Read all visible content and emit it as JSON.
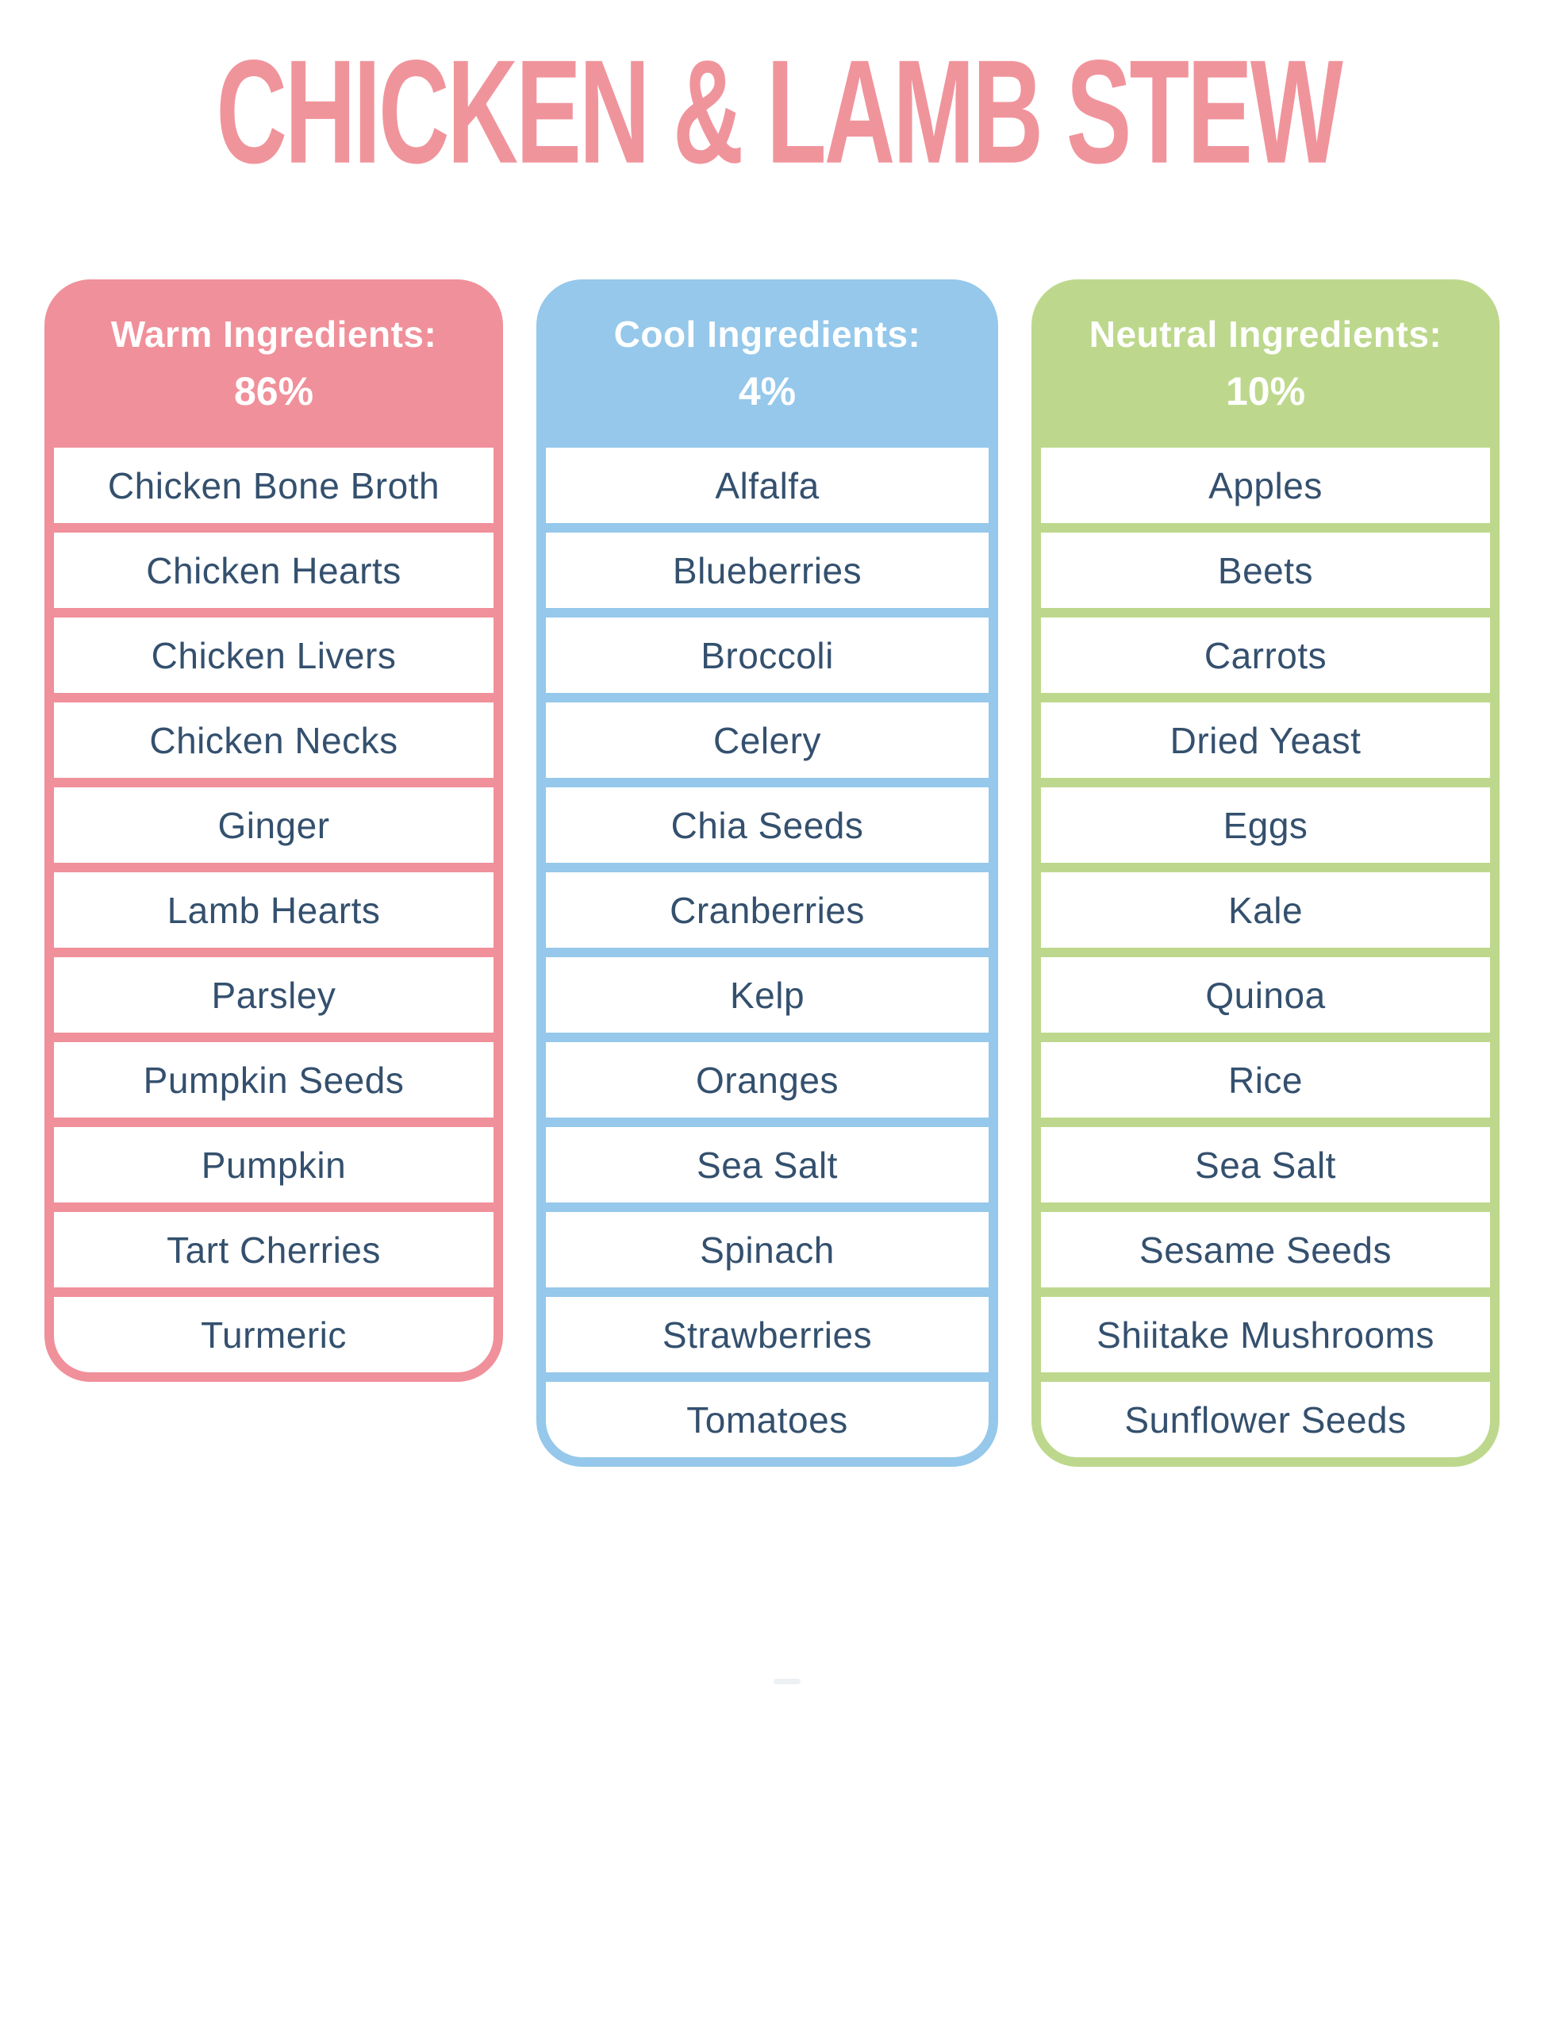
{
  "title": "CHICKEN & LAMB STEW",
  "colors": {
    "title": "#F0949C",
    "text": "#34506E",
    "row_bg": "#FFFFFF",
    "warm": "#F0909A",
    "cool": "#95C8EA",
    "neutral": "#BDD88C"
  },
  "columns": [
    {
      "id": "warm",
      "header": "Warm Ingredients:",
      "percent": "86%",
      "color": "#F0909A",
      "items": [
        "Chicken Bone Broth",
        "Chicken Hearts",
        "Chicken Livers",
        "Chicken Necks",
        "Ginger",
        "Lamb Hearts",
        "Parsley",
        "Pumpkin Seeds",
        "Pumpkin",
        "Tart Cherries",
        "Turmeric"
      ]
    },
    {
      "id": "cool",
      "header": "Cool Ingredients:",
      "percent": "4%",
      "color": "#95C8EA",
      "items": [
        "Alfalfa",
        "Blueberries",
        "Broccoli",
        "Celery",
        "Chia Seeds",
        "Cranberries",
        "Kelp",
        "Oranges",
        "Sea Salt",
        "Spinach",
        "Strawberries",
        "Tomatoes"
      ]
    },
    {
      "id": "neutral",
      "header": "Neutral Ingredients:",
      "percent": "10%",
      "color": "#BDD88C",
      "items": [
        "Apples",
        "Beets",
        "Carrots",
        "Dried Yeast",
        "Eggs",
        "Kale",
        "Quinoa",
        "Rice",
        "Sea Salt",
        "Sesame Seeds",
        "Shiitake Mushrooms",
        "Sunflower Seeds"
      ]
    }
  ]
}
